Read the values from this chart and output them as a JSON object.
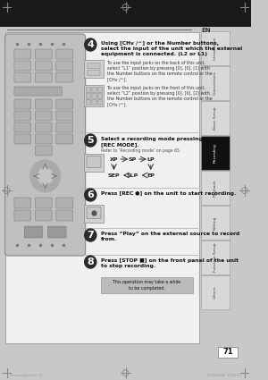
{
  "bg_color": "#c8c8c8",
  "top_band_color": "#1a1a1a",
  "page_bg": "#f0f0f0",
  "white_box_color": "#f0f0f0",
  "page_number": "71",
  "tab_labels": [
    "Introduction",
    "Connections",
    "Basic Setup",
    "Recording",
    "Playback",
    "Editing",
    "Function Setup",
    "Others"
  ],
  "tab_active": "Recording",
  "tab_active_color": "#111111",
  "tab_inactive_color": "#d8d8d8",
  "tab_text_color_active": "#ffffff",
  "tab_text_color_inactive": "#444444",
  "step4_num": "4",
  "step4_title": "Using [CHv /^] or the Number buttons,\nselect the input of the unit which the external\nequipment is connected. (L2 or L1)",
  "step4_bullet1": "To use the input jacks on the back of this unit,\nselect “L1” position by pressing [0], [0], [1] with\nthe Number buttons on the remote control or the\n[CHv /^].",
  "step4_bullet2": "To use the input jacks on the front of this unit,\nselect “L2” position by pressing [0], [0], [2] with\nthe Number buttons on the remote control or the\n[CHv /^].",
  "step5_num": "5",
  "step5_title": "Select a recording mode pressing\n[REC MODE].",
  "step5_sub": "Refer to ‘Recording mode’ on page 65.",
  "step6_num": "6",
  "step6_title": "Press [REC ●] on the unit to start recording.",
  "step7_num": "7",
  "step7_title": "Press “Play” on the external source to record\nfrom.",
  "step8_num": "8",
  "step8_title": "Press [STOP ■] on the front panel of the unit\nto stop recording.",
  "step8_note": "This operation may take a while\nto be completed.",
  "note_bg": "#bbbbbb",
  "header_line_color": "#555555",
  "icon_bg": "#d0d0d0",
  "remote_body": "#c0c0c0",
  "remote_border": "#888888",
  "sep_line_color": "#aaaaaa",
  "footer_text_color": "#999999",
  "crosshair_color": "#888888"
}
